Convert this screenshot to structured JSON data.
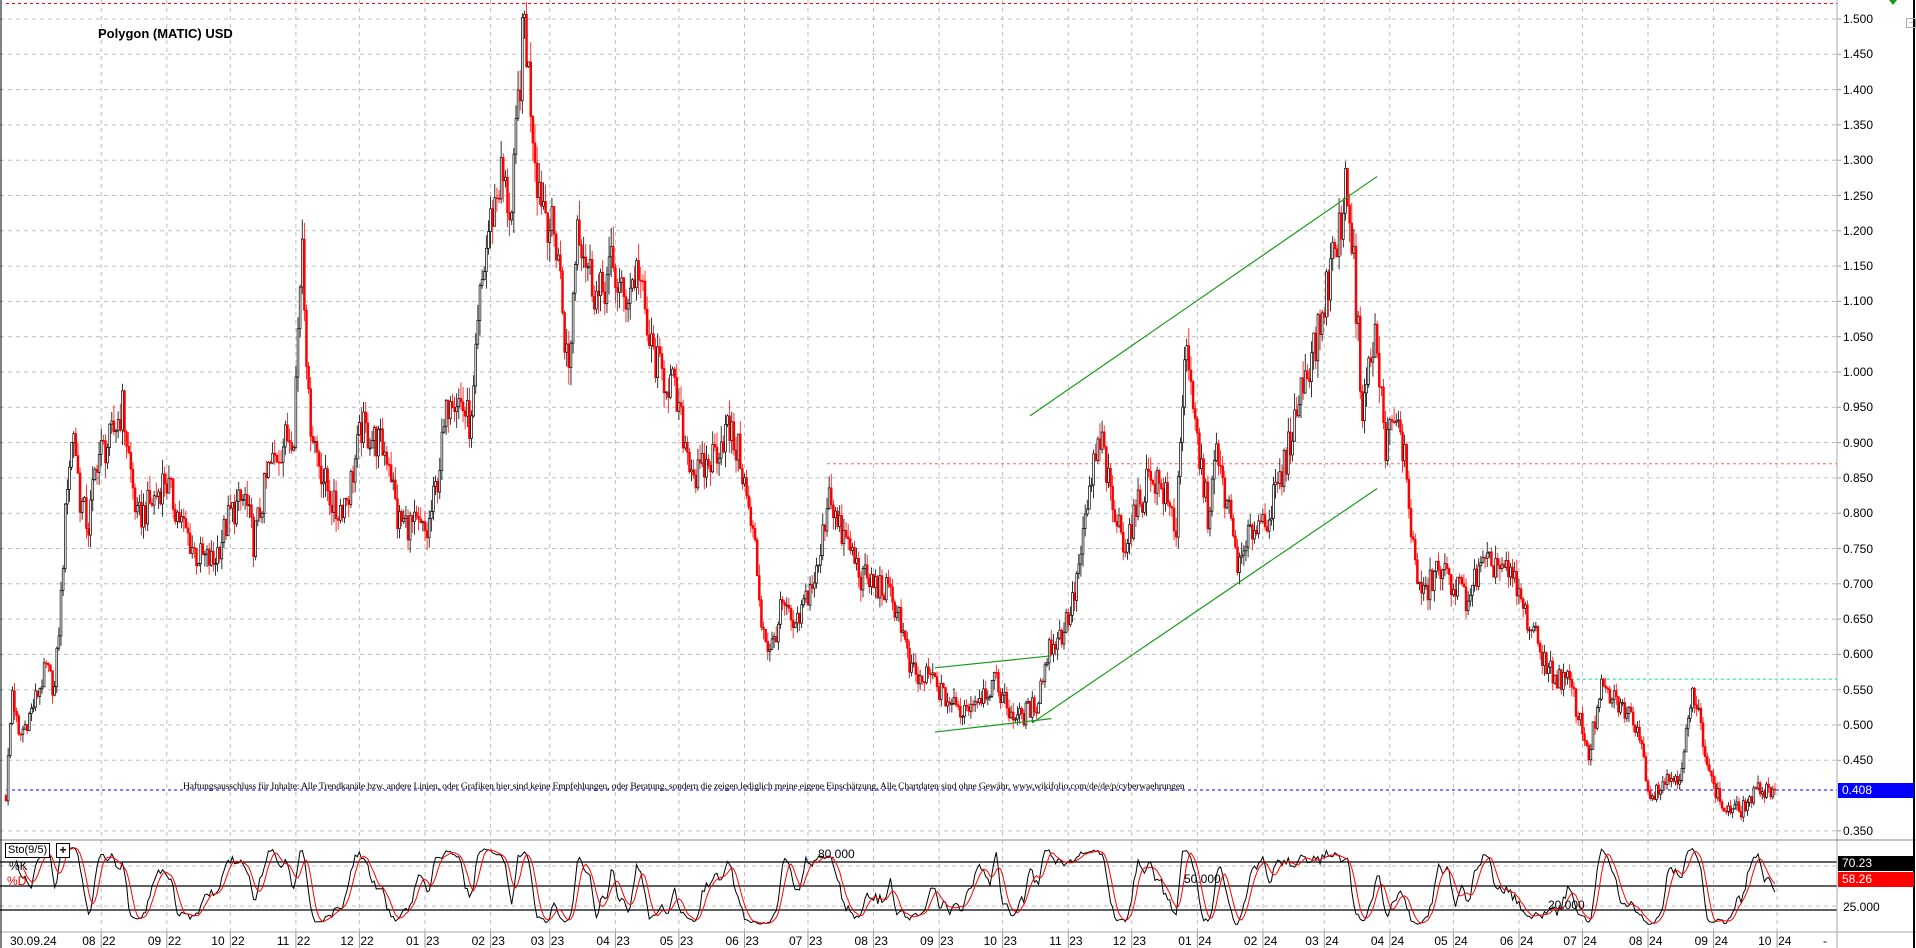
{
  "chart_data": {
    "type": "candlestick",
    "title": "Polygon (MATIC) USD",
    "ylim": [
      0.33,
      1.527
    ],
    "y_ticks": [
      "1.500",
      "1.450",
      "1.400",
      "1.350",
      "1.300",
      "1.250",
      "1.200",
      "1.150",
      "1.100",
      "1.050",
      "1.000",
      "0.950",
      "0.900",
      "0.850",
      "0.800",
      "0.750",
      "0.700",
      "0.650",
      "0.600",
      "0.550",
      "0.500",
      "0.450",
      "0.350"
    ],
    "last_price": "0.408",
    "x_axis": {
      "start_label": "30.09.24",
      "months": [
        {
          "label": "08",
          "year": "22",
          "day": 45
        },
        {
          "label": "09",
          "year": "22",
          "day": 76
        },
        {
          "label": "10",
          "year": "22",
          "day": 106
        },
        {
          "label": "11",
          "year": "22",
          "day": 137
        },
        {
          "label": "12",
          "year": "22",
          "day": 167
        },
        {
          "label": "01",
          "year": "23",
          "day": 198
        },
        {
          "label": "02",
          "year": "23",
          "day": 229
        },
        {
          "label": "03",
          "year": "23",
          "day": 257
        },
        {
          "label": "04",
          "year": "23",
          "day": 288
        },
        {
          "label": "05",
          "year": "23",
          "day": 318
        },
        {
          "label": "06",
          "year": "23",
          "day": 349
        },
        {
          "label": "07",
          "year": "23",
          "day": 379
        },
        {
          "label": "08",
          "year": "23",
          "day": 410
        },
        {
          "label": "09",
          "year": "23",
          "day": 441
        },
        {
          "label": "10",
          "year": "23",
          "day": 471
        },
        {
          "label": "11",
          "year": "23",
          "day": 502
        },
        {
          "label": "12",
          "year": "23",
          "day": 532
        },
        {
          "label": "01",
          "year": "24",
          "day": 563
        },
        {
          "label": "02",
          "year": "24",
          "day": 594
        },
        {
          "label": "03",
          "year": "24",
          "day": 623
        },
        {
          "label": "04",
          "year": "24",
          "day": 654
        },
        {
          "label": "05",
          "year": "24",
          "day": 684
        },
        {
          "label": "06",
          "year": "24",
          "day": 715
        },
        {
          "label": "07",
          "year": "24",
          "day": 745
        },
        {
          "label": "08",
          "year": "24",
          "day": 776
        },
        {
          "label": "09",
          "year": "24",
          "day": 807
        },
        {
          "label": "10",
          "year": "24",
          "day": 837
        }
      ],
      "end_marker": "-",
      "last_day": 836
    },
    "price_path": [
      [
        0,
        0.4
      ],
      [
        3,
        0.55
      ],
      [
        6,
        0.48
      ],
      [
        12,
        0.52
      ],
      [
        19,
        0.58
      ],
      [
        23,
        0.55
      ],
      [
        26,
        0.68
      ],
      [
        29,
        0.85
      ],
      [
        32,
        0.92
      ],
      [
        35,
        0.82
      ],
      [
        39,
        0.78
      ],
      [
        43,
        0.88
      ],
      [
        49,
        0.9
      ],
      [
        55,
        0.95
      ],
      [
        58,
        0.88
      ],
      [
        62,
        0.79
      ],
      [
        70,
        0.82
      ],
      [
        75,
        0.85
      ],
      [
        81,
        0.8
      ],
      [
        90,
        0.74
      ],
      [
        98,
        0.73
      ],
      [
        106,
        0.8
      ],
      [
        113,
        0.82
      ],
      [
        117,
        0.76
      ],
      [
        124,
        0.86
      ],
      [
        131,
        0.9
      ],
      [
        136,
        0.92
      ],
      [
        140,
        1.2
      ],
      [
        143,
        0.95
      ],
      [
        146,
        0.9
      ],
      [
        150,
        0.85
      ],
      [
        156,
        0.8
      ],
      [
        162,
        0.83
      ],
      [
        168,
        0.92
      ],
      [
        176,
        0.9
      ],
      [
        181,
        0.88
      ],
      [
        185,
        0.79
      ],
      [
        194,
        0.78
      ],
      [
        199,
        0.77
      ],
      [
        204,
        0.85
      ],
      [
        210,
        0.98
      ],
      [
        216,
        0.95
      ],
      [
        220,
        0.92
      ],
      [
        224,
        1.1
      ],
      [
        228,
        1.2
      ],
      [
        234,
        1.28
      ],
      [
        239,
        1.22
      ],
      [
        242,
        1.38
      ],
      [
        245,
        1.5
      ],
      [
        247,
        1.42
      ],
      [
        251,
        1.28
      ],
      [
        256,
        1.22
      ],
      [
        261,
        1.17
      ],
      [
        264,
        1.05
      ],
      [
        266,
        1.0
      ],
      [
        270,
        1.22
      ],
      [
        275,
        1.15
      ],
      [
        280,
        1.1
      ],
      [
        286,
        1.15
      ],
      [
        292,
        1.1
      ],
      [
        299,
        1.15
      ],
      [
        303,
        1.05
      ],
      [
        309,
        1.0
      ],
      [
        315,
        0.98
      ],
      [
        321,
        0.9
      ],
      [
        326,
        0.85
      ],
      [
        332,
        0.87
      ],
      [
        341,
        0.92
      ],
      [
        347,
        0.88
      ],
      [
        351,
        0.8
      ],
      [
        354,
        0.75
      ],
      [
        357,
        0.65
      ],
      [
        361,
        0.6
      ],
      [
        367,
        0.67
      ],
      [
        373,
        0.63
      ],
      [
        378,
        0.68
      ],
      [
        384,
        0.72
      ],
      [
        389,
        0.84
      ],
      [
        393,
        0.78
      ],
      [
        399,
        0.75
      ],
      [
        404,
        0.71
      ],
      [
        410,
        0.7
      ],
      [
        416,
        0.69
      ],
      [
        422,
        0.66
      ],
      [
        427,
        0.58
      ],
      [
        432,
        0.56
      ],
      [
        437,
        0.57
      ],
      [
        443,
        0.54
      ],
      [
        451,
        0.52
      ],
      [
        459,
        0.54
      ],
      [
        468,
        0.56
      ],
      [
        474,
        0.52
      ],
      [
        479,
        0.51
      ],
      [
        487,
        0.53
      ],
      [
        493,
        0.61
      ],
      [
        499,
        0.63
      ],
      [
        504,
        0.67
      ],
      [
        509,
        0.76
      ],
      [
        514,
        0.87
      ],
      [
        518,
        0.9
      ],
      [
        523,
        0.8
      ],
      [
        529,
        0.76
      ],
      [
        534,
        0.8
      ],
      [
        541,
        0.86
      ],
      [
        547,
        0.83
      ],
      [
        553,
        0.78
      ],
      [
        557,
        1.03
      ],
      [
        563,
        0.9
      ],
      [
        568,
        0.8
      ],
      [
        572,
        0.88
      ],
      [
        578,
        0.8
      ],
      [
        583,
        0.72
      ],
      [
        589,
        0.78
      ],
      [
        597,
        0.8
      ],
      [
        603,
        0.85
      ],
      [
        608,
        0.92
      ],
      [
        614,
        1.0
      ],
      [
        620,
        1.05
      ],
      [
        626,
        1.15
      ],
      [
        630,
        1.2
      ],
      [
        634,
        1.27
      ],
      [
        637,
        1.15
      ],
      [
        641,
        0.95
      ],
      [
        647,
        1.05
      ],
      [
        652,
        0.9
      ],
      [
        657,
        0.93
      ],
      [
        661,
        0.88
      ],
      [
        666,
        0.72
      ],
      [
        670,
        0.68
      ],
      [
        676,
        0.72
      ],
      [
        685,
        0.7
      ],
      [
        690,
        0.68
      ],
      [
        697,
        0.72
      ],
      [
        705,
        0.73
      ],
      [
        713,
        0.7
      ],
      [
        719,
        0.65
      ],
      [
        726,
        0.6
      ],
      [
        731,
        0.57
      ],
      [
        739,
        0.56
      ],
      [
        748,
        0.46
      ],
      [
        754,
        0.55
      ],
      [
        762,
        0.53
      ],
      [
        771,
        0.5
      ],
      [
        777,
        0.4
      ],
      [
        783,
        0.42
      ],
      [
        791,
        0.43
      ],
      [
        797,
        0.54
      ],
      [
        801,
        0.5
      ],
      [
        806,
        0.42
      ],
      [
        812,
        0.38
      ],
      [
        820,
        0.38
      ],
      [
        829,
        0.41
      ],
      [
        836,
        0.408
      ]
    ],
    "trend_lines": [
      {
        "name": "channel-upper",
        "from": [
          484,
          0.938
        ],
        "to": [
          648,
          1.277
        ],
        "color": "#1a9a1a"
      },
      {
        "name": "channel-lower",
        "from": [
          485,
          0.503
        ],
        "to": [
          648,
          0.835
        ],
        "color": "#1a9a1a"
      },
      {
        "name": "wedge-upper",
        "from": [
          439,
          0.581
        ],
        "to": [
          494,
          0.598
        ],
        "color": "#1a9a1a"
      },
      {
        "name": "wedge-lower",
        "from": [
          439,
          0.49
        ],
        "to": [
          494,
          0.509
        ],
        "color": "#1a9a1a"
      }
    ],
    "horizontal_lines": [
      {
        "name": "resistance-line",
        "price": 0.87,
        "from_day": 388,
        "color": "#ff6060"
      },
      {
        "name": "support-line",
        "price": 0.565,
        "from_day": 731,
        "color": "#00e08a"
      },
      {
        "name": "last-price-line",
        "price": 0.408,
        "from_day": 0,
        "color": "#0000ff"
      },
      {
        "name": "top-line",
        "price": 1.522,
        "from_day": 0,
        "color": "#ff0000"
      }
    ],
    "colors": {
      "up": "#000000",
      "down": "#ff0000",
      "grid": "#bdbdbd"
    },
    "stochastic": {
      "label": "Sto(9/5)",
      "k_label": "%K",
      "d_label": "%D",
      "k_value": "70.23",
      "d_value": "58.26",
      "levels": [
        {
          "value": 80,
          "label": "80.000"
        },
        {
          "value": 50,
          "label": "50.000"
        },
        {
          "value": 20,
          "label": "20.000"
        }
      ],
      "axis_label": "25.000",
      "ylim": [
        0,
        100
      ]
    }
  },
  "disclaimer": "Haftungsausschluss für Inhalte: Alle Trendkanäle bzw. andere Linien, oder Grafiken hier sind keine Empfehlungen, oder Beratung, sondern die zeigen lediglich meine eigene Einschätzung. Alle Chartdaten sind ohne Gewähr. www.wikifolio.com/de/de/p/cyberwaehrungen"
}
